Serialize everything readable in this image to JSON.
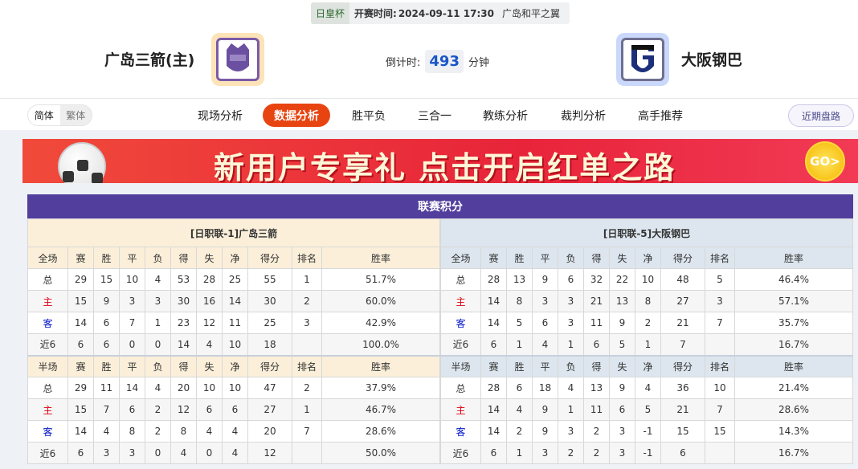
{
  "match": {
    "cup": "日皇杯",
    "kickoff_label": "开赛时间:",
    "kickoff": "2024-09-11 17:30",
    "venue": "广岛和平之翼",
    "home": "广岛三箭(主)",
    "away": "大阪钢巴",
    "countdown_label": "倒计时:",
    "countdown": "493",
    "countdown_unit": "分钟"
  },
  "lang": {
    "simplified": "简体",
    "traditional": "繁体"
  },
  "tabs": [
    "现场分析",
    "数据分析",
    "胜平负",
    "三合一",
    "教练分析",
    "裁判分析",
    "高手推荐"
  ],
  "active_tab": "数据分析",
  "recent_button": "近期盘路",
  "banner": {
    "text": "新用户专享礼  点击开启红单之路",
    "go": "GO>"
  },
  "standings": {
    "title": "联赛积分",
    "columns_full": [
      "全场",
      "赛",
      "胜",
      "平",
      "负",
      "得",
      "失",
      "净",
      "得分",
      "排名",
      "胜率"
    ],
    "columns_half": [
      "半场",
      "赛",
      "胜",
      "平",
      "负",
      "得",
      "失",
      "净",
      "得分",
      "排名",
      "胜率"
    ],
    "home": {
      "caption": "[日职联-1]广岛三箭",
      "full": [
        [
          "总",
          "29",
          "15",
          "10",
          "4",
          "53",
          "28",
          "25",
          "55",
          "1",
          "51.7%"
        ],
        [
          "主",
          "15",
          "9",
          "3",
          "3",
          "30",
          "16",
          "14",
          "30",
          "2",
          "60.0%"
        ],
        [
          "客",
          "14",
          "6",
          "7",
          "1",
          "23",
          "12",
          "11",
          "25",
          "3",
          "42.9%"
        ],
        [
          "近6",
          "6",
          "6",
          "0",
          "0",
          "14",
          "4",
          "10",
          "18",
          "",
          "100.0%"
        ]
      ],
      "half": [
        [
          "总",
          "29",
          "11",
          "14",
          "4",
          "20",
          "10",
          "10",
          "47",
          "2",
          "37.9%"
        ],
        [
          "主",
          "15",
          "7",
          "6",
          "2",
          "12",
          "6",
          "6",
          "27",
          "1",
          "46.7%"
        ],
        [
          "客",
          "14",
          "4",
          "8",
          "2",
          "8",
          "4",
          "4",
          "20",
          "7",
          "28.6%"
        ],
        [
          "近6",
          "6",
          "3",
          "3",
          "0",
          "4",
          "0",
          "4",
          "12",
          "",
          "50.0%"
        ]
      ]
    },
    "away": {
      "caption": "[日职联-5]大阪钢巴",
      "full": [
        [
          "总",
          "28",
          "13",
          "9",
          "6",
          "32",
          "22",
          "10",
          "48",
          "5",
          "46.4%"
        ],
        [
          "主",
          "14",
          "8",
          "3",
          "3",
          "21",
          "13",
          "8",
          "27",
          "3",
          "57.1%"
        ],
        [
          "客",
          "14",
          "5",
          "6",
          "3",
          "11",
          "9",
          "2",
          "21",
          "7",
          "35.7%"
        ],
        [
          "近6",
          "6",
          "1",
          "4",
          "1",
          "6",
          "5",
          "1",
          "7",
          "",
          "16.7%"
        ]
      ],
      "half": [
        [
          "总",
          "28",
          "6",
          "18",
          "4",
          "13",
          "9",
          "4",
          "36",
          "10",
          "21.4%"
        ],
        [
          "主",
          "14",
          "4",
          "9",
          "1",
          "11",
          "6",
          "5",
          "21",
          "7",
          "28.6%"
        ],
        [
          "客",
          "14",
          "2",
          "9",
          "3",
          "2",
          "3",
          "-1",
          "15",
          "15",
          "14.3%"
        ],
        [
          "近6",
          "6",
          "1",
          "3",
          "2",
          "2",
          "3",
          "-1",
          "6",
          "",
          "16.7%"
        ]
      ]
    }
  }
}
